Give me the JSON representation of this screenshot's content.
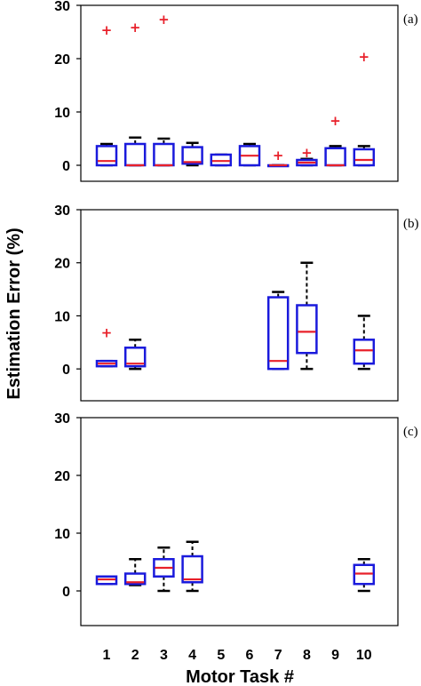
{
  "figure": {
    "ylabel": "Estimation Error (%)",
    "xlabel": "Motor Task #"
  },
  "chart_data": [
    {
      "type": "box",
      "panel_label": "(a)",
      "ylim": [
        -3,
        30
      ],
      "yticks": [
        0,
        10,
        20,
        30
      ],
      "x": [
        1,
        2,
        3,
        4,
        5,
        6,
        7,
        8,
        9,
        10
      ],
      "boxes": [
        {
          "task": 1,
          "whisker_low": 0,
          "q1": 0,
          "median": 0.8,
          "q3": 3.6,
          "whisker_high": 4.0,
          "outliers": [
            25.5
          ]
        },
        {
          "task": 2,
          "whisker_low": 0,
          "q1": 0,
          "median": 0,
          "q3": 4.0,
          "whisker_high": 5.2,
          "outliers": [
            26.0
          ]
        },
        {
          "task": 3,
          "whisker_low": 0,
          "q1": 0,
          "median": 0,
          "q3": 4.0,
          "whisker_high": 5.0,
          "outliers": [
            27.5
          ]
        },
        {
          "task": 4,
          "whisker_low": 0,
          "q1": 0.3,
          "median": 0.6,
          "q3": 3.4,
          "whisker_high": 4.2,
          "outliers": []
        },
        {
          "task": 5,
          "whisker_low": 0,
          "q1": 0,
          "median": 0.8,
          "q3": 2.0,
          "whisker_high": 2.0,
          "outliers": []
        },
        {
          "task": 6,
          "whisker_low": 0,
          "q1": 0,
          "median": 1.8,
          "q3": 3.6,
          "whisker_high": 4.0,
          "outliers": []
        },
        {
          "task": 7,
          "whisker_low": 0,
          "q1": 0,
          "median": 0,
          "q3": 0,
          "whisker_high": 0,
          "outliers": [
            2.0
          ]
        },
        {
          "task": 8,
          "whisker_low": 0,
          "q1": 0,
          "median": 0.5,
          "q3": 1.0,
          "whisker_high": 1.2,
          "outliers": [
            2.5
          ]
        },
        {
          "task": 9,
          "whisker_low": 0,
          "q1": 0,
          "median": 0,
          "q3": 3.2,
          "whisker_high": 3.6,
          "outliers": [
            8.5
          ]
        },
        {
          "task": 10,
          "whisker_low": 0,
          "q1": 0,
          "median": 1.0,
          "q3": 3.0,
          "whisker_high": 3.6,
          "outliers": [
            20.5
          ]
        }
      ]
    },
    {
      "type": "box",
      "panel_label": "(b)",
      "ylim": [
        -6,
        30
      ],
      "yticks": [
        0,
        10,
        20,
        30
      ],
      "x": [
        1,
        2,
        3,
        4,
        5,
        6,
        7,
        8,
        9,
        10
      ],
      "boxes": [
        {
          "task": 1,
          "whisker_low": 0.5,
          "q1": 0.5,
          "median": 1.0,
          "q3": 1.5,
          "whisker_high": 1.5,
          "outliers": [
            7.0
          ]
        },
        {
          "task": 2,
          "whisker_low": 0,
          "q1": 0.5,
          "median": 1.0,
          "q3": 4.0,
          "whisker_high": 5.5,
          "outliers": []
        },
        {
          "task": 7,
          "whisker_low": 0,
          "q1": 0,
          "median": 1.5,
          "q3": 13.5,
          "whisker_high": 14.5,
          "outliers": []
        },
        {
          "task": 8,
          "whisker_low": 0,
          "q1": 3.0,
          "median": 7.0,
          "q3": 12.0,
          "whisker_high": 20.0,
          "outliers": []
        },
        {
          "task": 10,
          "whisker_low": 0,
          "q1": 1.0,
          "median": 3.5,
          "q3": 5.5,
          "whisker_high": 10.0,
          "outliers": []
        }
      ]
    },
    {
      "type": "box",
      "panel_label": "(c)",
      "ylim": [
        -6,
        30
      ],
      "yticks": [
        0,
        10,
        20,
        30
      ],
      "x": [
        1,
        2,
        3,
        4,
        5,
        6,
        7,
        8,
        9,
        10
      ],
      "boxes": [
        {
          "task": 1,
          "whisker_low": 1.2,
          "q1": 1.2,
          "median": 2.0,
          "q3": 2.5,
          "whisker_high": 2.5,
          "outliers": []
        },
        {
          "task": 2,
          "whisker_low": 1.0,
          "q1": 1.2,
          "median": 1.5,
          "q3": 3.0,
          "whisker_high": 5.5,
          "outliers": []
        },
        {
          "task": 3,
          "whisker_low": 0,
          "q1": 2.5,
          "median": 4.0,
          "q3": 5.5,
          "whisker_high": 7.5,
          "outliers": []
        },
        {
          "task": 4,
          "whisker_low": 0,
          "q1": 1.5,
          "median": 2.0,
          "q3": 6.0,
          "whisker_high": 8.5,
          "outliers": []
        },
        {
          "task": 10,
          "whisker_low": 0,
          "q1": 1.2,
          "median": 3.0,
          "q3": 4.5,
          "whisker_high": 5.5,
          "outliers": []
        }
      ]
    }
  ],
  "colors": {
    "box": "#1a1adc",
    "median": "#e8202a",
    "outlier": "#e8202a",
    "whisker": "#000000",
    "axis": "#000000"
  }
}
